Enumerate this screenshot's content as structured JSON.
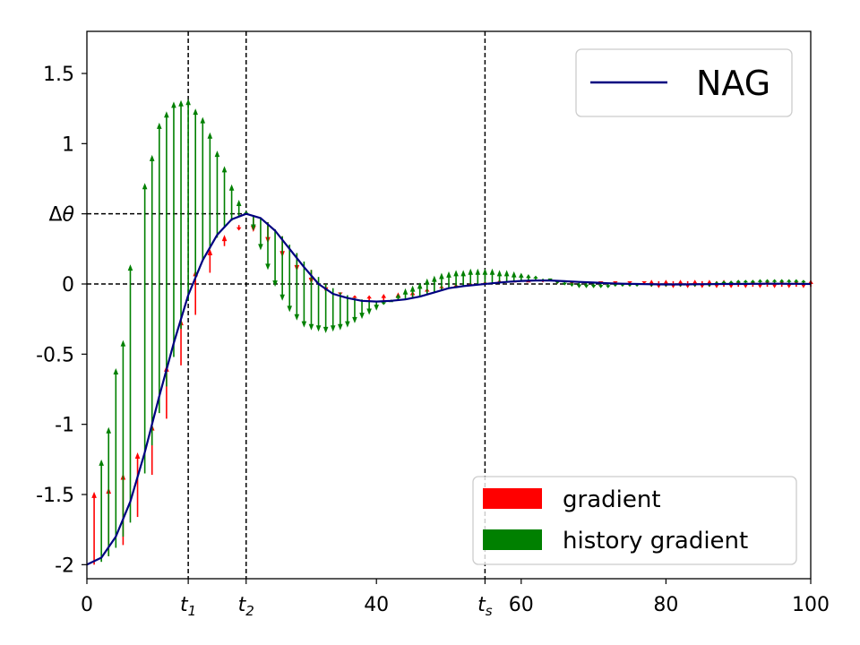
{
  "chart_data": {
    "type": "line",
    "title": "",
    "xlabel": "",
    "ylabel": "",
    "xlim": [
      0,
      100
    ],
    "ylim": [
      -2.1,
      1.8
    ],
    "grid": false,
    "x_ticks": [
      {
        "value": 0,
        "label": "0"
      },
      {
        "value": 14,
        "label": "t",
        "sub": "1"
      },
      {
        "value": 22,
        "label": "t",
        "sub": "2"
      },
      {
        "value": 40,
        "label": "40"
      },
      {
        "value": 55,
        "label": "t",
        "sub": "s"
      },
      {
        "value": 60,
        "label": "60"
      },
      {
        "value": 80,
        "label": "80"
      },
      {
        "value": 100,
        "label": "100"
      }
    ],
    "y_ticks": [
      {
        "value": 1.5,
        "label": "1.5"
      },
      {
        "value": 1,
        "label": "1"
      },
      {
        "value": 0.5,
        "label": "Δθ"
      },
      {
        "value": 0,
        "label": "0"
      },
      {
        "value": -0.5,
        "label": "-0.5"
      },
      {
        "value": -1,
        "label": "-1"
      },
      {
        "value": -1.5,
        "label": "-1.5"
      },
      {
        "value": -2,
        "label": "-2"
      }
    ],
    "reference_lines": {
      "vertical_x": [
        14,
        22,
        55
      ],
      "horizontal": [
        {
          "y": 0.5,
          "x_to": 22
        },
        {
          "y": 0,
          "x_to": 100
        }
      ]
    },
    "series": [
      {
        "name": "NAG",
        "color": "#000080",
        "x": [
          0,
          2,
          4,
          6,
          8,
          10,
          12,
          14,
          16,
          18,
          20,
          22,
          24,
          26,
          28,
          30,
          32,
          34,
          36,
          38,
          40,
          42,
          44,
          46,
          48,
          50,
          52,
          54,
          56,
          58,
          60,
          62,
          64,
          66,
          68,
          70,
          72,
          74,
          76,
          78,
          80,
          82,
          84,
          86,
          88,
          90,
          92,
          94,
          96,
          98,
          100
        ],
        "y": [
          -2.0,
          -1.95,
          -1.8,
          -1.55,
          -1.2,
          -0.8,
          -0.42,
          -0.08,
          0.17,
          0.35,
          0.46,
          0.5,
          0.47,
          0.38,
          0.25,
          0.12,
          0.0,
          -0.07,
          -0.1,
          -0.12,
          -0.125,
          -0.12,
          -0.11,
          -0.09,
          -0.06,
          -0.03,
          -0.015,
          -0.005,
          0.005,
          0.015,
          0.022,
          0.025,
          0.025,
          0.02,
          0.015,
          0.01,
          0.005,
          0.002,
          0.0,
          -0.002,
          -0.003,
          -0.003,
          -0.002,
          -0.001,
          0.0,
          0.0,
          0.001,
          0.002,
          0.002,
          0.001,
          0.0
        ]
      }
    ],
    "arrows": {
      "gradient_color": "#ff0000",
      "history_gradient_color": "#008000",
      "gradient": [
        {
          "x": 1,
          "y0": -2.0,
          "y1": -1.48
        },
        {
          "x": 3,
          "y0": -1.94,
          "y1": -1.45
        },
        {
          "x": 5,
          "y0": -1.86,
          "y1": -1.35
        },
        {
          "x": 7,
          "y0": -1.66,
          "y1": -1.2
        },
        {
          "x": 9,
          "y0": -1.36,
          "y1": -1.0
        },
        {
          "x": 11,
          "y0": -0.96,
          "y1": -0.58
        },
        {
          "x": 13,
          "y0": -0.58,
          "y1": -0.25
        },
        {
          "x": 15,
          "y0": -0.22,
          "y1": 0.1
        },
        {
          "x": 17,
          "y0": 0.08,
          "y1": 0.25
        },
        {
          "x": 19,
          "y0": 0.27,
          "y1": 0.35
        },
        {
          "x": 21,
          "y0": 0.42,
          "y1": 0.38
        },
        {
          "x": 23,
          "y0": 0.49,
          "y1": 0.37
        },
        {
          "x": 25,
          "y0": 0.44,
          "y1": 0.29
        },
        {
          "x": 27,
          "y0": 0.34,
          "y1": 0.19
        },
        {
          "x": 29,
          "y0": 0.22,
          "y1": 0.09
        },
        {
          "x": 31,
          "y0": 0.1,
          "y1": 0.0
        },
        {
          "x": 33,
          "y0": 0.0,
          "y1": -0.06
        },
        {
          "x": 35,
          "y0": -0.06,
          "y1": -0.08
        },
        {
          "x": 37,
          "y0": -0.1,
          "y1": -0.08
        },
        {
          "x": 39,
          "y0": -0.12,
          "y1": -0.08
        },
        {
          "x": 41,
          "y0": -0.12,
          "y1": -0.07
        },
        {
          "x": 43,
          "y0": -0.12,
          "y1": -0.06
        },
        {
          "x": 45,
          "y0": -0.1,
          "y1": -0.05
        },
        {
          "x": 47,
          "y0": -0.07,
          "y1": -0.03
        },
        {
          "x": 49,
          "y0": -0.04,
          "y1": -0.01
        },
        {
          "x": 51,
          "y0": -0.02,
          "y1": 0.0
        },
        {
          "x": 53,
          "y0": -0.01,
          "y1": 0.01
        },
        {
          "x": 55,
          "y0": 0.0,
          "y1": 0.02
        },
        {
          "x": 57,
          "y0": 0.01,
          "y1": 0.03
        },
        {
          "x": 59,
          "y0": 0.02,
          "y1": 0.03
        },
        {
          "x": 61,
          "y0": 0.025,
          "y1": 0.03
        },
        {
          "x": 63,
          "y0": 0.025,
          "y1": 0.01
        },
        {
          "x": 65,
          "y0": 0.02,
          "y1": 0.0
        },
        {
          "x": 67,
          "y0": 0.015,
          "y1": -0.005
        },
        {
          "x": 69,
          "y0": 0.012,
          "y1": 0.0
        },
        {
          "x": 71,
          "y0": 0.008,
          "y1": 0.0
        },
        {
          "x": 73,
          "y0": 0.004,
          "y1": 0.0
        },
        {
          "x": 75,
          "y0": 0.002,
          "y1": 0.0
        },
        {
          "x": 77,
          "y0": 0.0,
          "y1": 0.0
        },
        {
          "x": 78,
          "y0": -0.02,
          "y1": 0.03
        },
        {
          "x": 79,
          "y0": 0.02,
          "y1": -0.03
        },
        {
          "x": 80,
          "y0": -0.02,
          "y1": 0.03
        },
        {
          "x": 81,
          "y0": 0.02,
          "y1": -0.03
        },
        {
          "x": 82,
          "y0": -0.02,
          "y1": 0.03
        },
        {
          "x": 83,
          "y0": 0.02,
          "y1": -0.03
        },
        {
          "x": 84,
          "y0": -0.02,
          "y1": 0.03
        },
        {
          "x": 85,
          "y0": 0.02,
          "y1": -0.03
        },
        {
          "x": 86,
          "y0": -0.02,
          "y1": 0.03
        },
        {
          "x": 87,
          "y0": 0.02,
          "y1": -0.03
        },
        {
          "x": 88,
          "y0": -0.02,
          "y1": 0.03
        },
        {
          "x": 89,
          "y0": 0.02,
          "y1": -0.03
        },
        {
          "x": 90,
          "y0": -0.02,
          "y1": 0.03
        },
        {
          "x": 91,
          "y0": 0.02,
          "y1": -0.03
        },
        {
          "x": 92,
          "y0": -0.02,
          "y1": 0.03
        },
        {
          "x": 93,
          "y0": 0.02,
          "y1": -0.03
        },
        {
          "x": 94,
          "y0": -0.02,
          "y1": 0.03
        },
        {
          "x": 95,
          "y0": 0.02,
          "y1": -0.03
        },
        {
          "x": 96,
          "y0": -0.02,
          "y1": 0.03
        },
        {
          "x": 97,
          "y0": 0.02,
          "y1": -0.03
        },
        {
          "x": 98,
          "y0": -0.02,
          "y1": 0.03
        },
        {
          "x": 99,
          "y0": 0.02,
          "y1": -0.03
        },
        {
          "x": 100,
          "y0": -0.02,
          "y1": 0.03
        }
      ],
      "history_gradient": [
        {
          "x": 2,
          "y0": -1.98,
          "y1": -1.25
        },
        {
          "x": 3,
          "y0": -1.94,
          "y1": -1.02
        },
        {
          "x": 4,
          "y0": -1.88,
          "y1": -0.6
        },
        {
          "x": 5,
          "y0": -1.8,
          "y1": -0.4
        },
        {
          "x": 6,
          "y0": -1.7,
          "y1": 0.14
        },
        {
          "x": 8,
          "y0": -1.35,
          "y1": 0.72
        },
        {
          "x": 9,
          "y0": -1.15,
          "y1": 0.92
        },
        {
          "x": 10,
          "y0": -0.92,
          "y1": 1.15
        },
        {
          "x": 11,
          "y0": -0.73,
          "y1": 1.23
        },
        {
          "x": 12,
          "y0": -0.52,
          "y1": 1.3
        },
        {
          "x": 13,
          "y0": -0.32,
          "y1": 1.31
        },
        {
          "x": 14,
          "y0": -0.12,
          "y1": 1.32
        },
        {
          "x": 15,
          "y0": 0.04,
          "y1": 1.25
        },
        {
          "x": 16,
          "y0": 0.16,
          "y1": 1.19
        },
        {
          "x": 17,
          "y0": 0.25,
          "y1": 1.08
        },
        {
          "x": 18,
          "y0": 0.33,
          "y1": 0.95
        },
        {
          "x": 19,
          "y0": 0.4,
          "y1": 0.84
        },
        {
          "x": 20,
          "y0": 0.45,
          "y1": 0.71
        },
        {
          "x": 21,
          "y0": 0.48,
          "y1": 0.6
        },
        {
          "x": 22,
          "y0": 0.5,
          "y1": 0.52
        },
        {
          "x": 23,
          "y0": 0.49,
          "y1": 0.38
        },
        {
          "x": 24,
          "y0": 0.47,
          "y1": 0.24
        },
        {
          "x": 25,
          "y0": 0.44,
          "y1": 0.1
        },
        {
          "x": 26,
          "y0": 0.39,
          "y1": -0.02
        },
        {
          "x": 27,
          "y0": 0.34,
          "y1": -0.12
        },
        {
          "x": 28,
          "y0": 0.28,
          "y1": -0.2
        },
        {
          "x": 29,
          "y0": 0.22,
          "y1": -0.26
        },
        {
          "x": 30,
          "y0": 0.16,
          "y1": -0.31
        },
        {
          "x": 31,
          "y0": 0.1,
          "y1": -0.33
        },
        {
          "x": 32,
          "y0": 0.05,
          "y1": -0.34
        },
        {
          "x": 33,
          "y0": 0.0,
          "y1": -0.35
        },
        {
          "x": 34,
          "y0": -0.03,
          "y1": -0.34
        },
        {
          "x": 35,
          "y0": -0.06,
          "y1": -0.33
        },
        {
          "x": 36,
          "y0": -0.08,
          "y1": -0.31
        },
        {
          "x": 37,
          "y0": -0.1,
          "y1": -0.28
        },
        {
          "x": 38,
          "y0": -0.11,
          "y1": -0.25
        },
        {
          "x": 39,
          "y0": -0.12,
          "y1": -0.22
        },
        {
          "x": 40,
          "y0": -0.12,
          "y1": -0.19
        },
        {
          "x": 41,
          "y0": -0.125,
          "y1": -0.15
        },
        {
          "x": 42,
          "y0": -0.12,
          "y1": -0.11
        },
        {
          "x": 43,
          "y0": -0.12,
          "y1": -0.07
        },
        {
          "x": 44,
          "y0": -0.11,
          "y1": -0.03
        },
        {
          "x": 45,
          "y0": -0.1,
          "y1": -0.01
        },
        {
          "x": 46,
          "y0": -0.09,
          "y1": 0.01
        },
        {
          "x": 47,
          "y0": -0.07,
          "y1": 0.04
        },
        {
          "x": 48,
          "y0": -0.06,
          "y1": 0.06
        },
        {
          "x": 49,
          "y0": -0.04,
          "y1": 0.08
        },
        {
          "x": 50,
          "y0": -0.03,
          "y1": 0.09
        },
        {
          "x": 51,
          "y0": -0.02,
          "y1": 0.1
        },
        {
          "x": 52,
          "y0": -0.015,
          "y1": 0.1
        },
        {
          "x": 53,
          "y0": -0.01,
          "y1": 0.11
        },
        {
          "x": 54,
          "y0": -0.005,
          "y1": 0.11
        },
        {
          "x": 55,
          "y0": 0.0,
          "y1": 0.11
        },
        {
          "x": 56,
          "y0": 0.005,
          "y1": 0.11
        },
        {
          "x": 57,
          "y0": 0.01,
          "y1": 0.1
        },
        {
          "x": 58,
          "y0": 0.015,
          "y1": 0.1
        },
        {
          "x": 59,
          "y0": 0.018,
          "y1": 0.09
        },
        {
          "x": 60,
          "y0": 0.022,
          "y1": 0.08
        },
        {
          "x": 61,
          "y0": 0.024,
          "y1": 0.07
        },
        {
          "x": 62,
          "y0": 0.025,
          "y1": 0.06
        },
        {
          "x": 63,
          "y0": 0.025,
          "y1": 0.04
        },
        {
          "x": 64,
          "y0": 0.025,
          "y1": 0.02
        },
        {
          "x": 65,
          "y0": 0.022,
          "y1": 0.0
        },
        {
          "x": 66,
          "y0": 0.02,
          "y1": -0.01
        },
        {
          "x": 67,
          "y0": 0.018,
          "y1": -0.02
        },
        {
          "x": 68,
          "y0": 0.015,
          "y1": -0.03
        },
        {
          "x": 69,
          "y0": 0.012,
          "y1": -0.03
        },
        {
          "x": 70,
          "y0": 0.01,
          "y1": -0.03
        },
        {
          "x": 71,
          "y0": 0.008,
          "y1": -0.03
        },
        {
          "x": 72,
          "y0": 0.005,
          "y1": -0.03
        },
        {
          "x": 73,
          "y0": 0.004,
          "y1": -0.02
        },
        {
          "x": 74,
          "y0": 0.002,
          "y1": -0.02
        },
        {
          "x": 75,
          "y0": 0.001,
          "y1": -0.02
        },
        {
          "x": 76,
          "y0": 0.0,
          "y1": -0.02
        },
        {
          "x": 78,
          "y0": -0.002,
          "y1": -0.02
        },
        {
          "x": 80,
          "y0": -0.003,
          "y1": -0.02
        },
        {
          "x": 82,
          "y0": -0.003,
          "y1": -0.02
        },
        {
          "x": 84,
          "y0": -0.002,
          "y1": -0.02
        },
        {
          "x": 86,
          "y0": -0.001,
          "y1": -0.02
        },
        {
          "x": 87,
          "y0": 0.0,
          "y1": 0.02
        },
        {
          "x": 88,
          "y0": 0.0,
          "y1": 0.025
        },
        {
          "x": 89,
          "y0": 0.0,
          "y1": 0.025
        },
        {
          "x": 90,
          "y0": 0.0,
          "y1": 0.03
        },
        {
          "x": 91,
          "y0": 0.0,
          "y1": 0.03
        },
        {
          "x": 92,
          "y0": 0.001,
          "y1": 0.03
        },
        {
          "x": 93,
          "y0": 0.001,
          "y1": 0.035
        },
        {
          "x": 94,
          "y0": 0.002,
          "y1": 0.035
        },
        {
          "x": 95,
          "y0": 0.002,
          "y1": 0.035
        },
        {
          "x": 96,
          "y0": 0.002,
          "y1": 0.035
        },
        {
          "x": 97,
          "y0": 0.001,
          "y1": 0.035
        },
        {
          "x": 98,
          "y0": 0.001,
          "y1": 0.035
        },
        {
          "x": 99,
          "y0": 0.0,
          "y1": 0.03
        }
      ]
    },
    "legends": [
      {
        "placement": "top-right",
        "entries": [
          {
            "label": "NAG",
            "color": "#000080",
            "kind": "line"
          }
        ]
      },
      {
        "placement": "bottom-right",
        "entries": [
          {
            "label": "gradient",
            "color": "#ff0000",
            "kind": "patch"
          },
          {
            "label": "history gradient",
            "color": "#008000",
            "kind": "patch"
          }
        ]
      }
    ]
  }
}
